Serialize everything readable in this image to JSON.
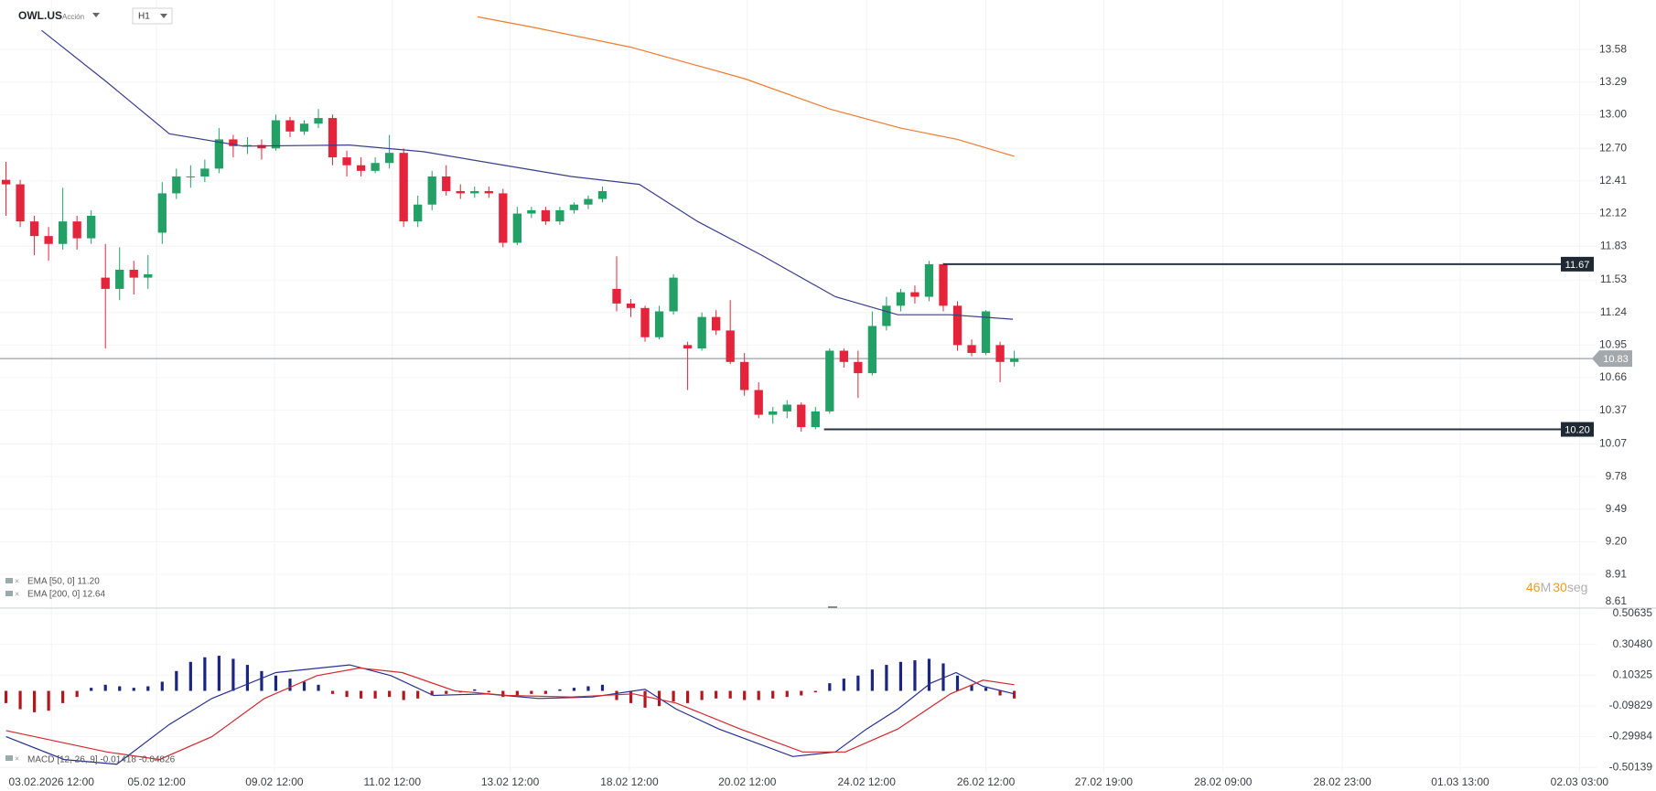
{
  "header": {
    "symbol": "OWL.US",
    "instrument_type": "Acción",
    "timeframe": "H1"
  },
  "timer": {
    "minutes": "46",
    "minutes_unit": "M",
    "seconds": "30",
    "seconds_unit": "seg"
  },
  "chart_data": [
    {
      "type": "candlestick",
      "up_color": "#23a065",
      "down_color": "#e3243b",
      "open": [
        12.42,
        12.38,
        12.05,
        11.92,
        11.85,
        12.05,
        11.9,
        11.55,
        11.45,
        11.62,
        11.55,
        11.95,
        12.3,
        12.45,
        12.45,
        12.52,
        12.78,
        12.72,
        12.73,
        12.7,
        12.95,
        12.85,
        12.92,
        12.97,
        12.62,
        12.55,
        12.5,
        12.57,
        12.66,
        12.05,
        12.2,
        12.45,
        12.32,
        12.3,
        12.32,
        12.3,
        11.86,
        12.12,
        12.15,
        12.05,
        12.15,
        12.2,
        12.25,
        11.45,
        11.32,
        11.28,
        11.02,
        11.25,
        10.95,
        10.92,
        11.2,
        11.08,
        10.8,
        10.55,
        10.33,
        10.36,
        10.42,
        10.22,
        10.36,
        10.9,
        10.8,
        10.7,
        11.12,
        11.3,
        11.42,
        11.38,
        11.67,
        11.3,
        10.95,
        10.88,
        10.95,
        10.8
      ],
      "high": [
        12.58,
        12.42,
        12.1,
        12.0,
        12.35,
        12.1,
        12.15,
        11.85,
        11.82,
        11.7,
        11.75,
        12.4,
        12.52,
        12.55,
        12.6,
        12.88,
        12.82,
        12.8,
        12.78,
        13.0,
        12.98,
        12.95,
        13.05,
        13.0,
        12.68,
        12.62,
        12.62,
        12.82,
        12.7,
        12.28,
        12.5,
        12.55,
        12.38,
        12.36,
        12.36,
        12.34,
        12.18,
        12.18,
        12.18,
        12.18,
        12.22,
        12.28,
        12.36,
        11.74,
        11.36,
        11.3,
        11.3,
        11.58,
        10.98,
        11.24,
        11.26,
        11.35,
        10.88,
        10.62,
        10.4,
        10.46,
        10.44,
        10.4,
        10.92,
        10.92,
        10.9,
        11.25,
        11.38,
        11.45,
        11.48,
        11.7,
        11.68,
        11.34,
        11.0,
        11.26,
        10.98,
        10.9
      ],
      "low": [
        12.1,
        12.0,
        11.75,
        11.7,
        11.8,
        11.8,
        11.85,
        10.92,
        11.35,
        11.4,
        11.45,
        11.85,
        12.25,
        12.35,
        12.4,
        12.48,
        12.62,
        12.65,
        12.6,
        12.68,
        12.8,
        12.82,
        12.88,
        12.55,
        12.45,
        12.45,
        12.48,
        12.52,
        12.0,
        12.0,
        12.15,
        12.28,
        12.25,
        12.26,
        12.26,
        11.82,
        11.84,
        12.08,
        12.02,
        12.02,
        12.12,
        12.16,
        12.22,
        11.25,
        11.2,
        10.98,
        11.0,
        11.22,
        10.55,
        10.9,
        11.04,
        10.78,
        10.5,
        10.3,
        10.25,
        10.3,
        10.18,
        10.2,
        10.34,
        10.75,
        10.48,
        10.68,
        11.08,
        11.25,
        11.32,
        11.34,
        11.25,
        10.9,
        10.85,
        10.86,
        10.62,
        10.76
      ],
      "close": [
        12.38,
        12.05,
        11.92,
        11.85,
        12.05,
        11.9,
        12.1,
        11.45,
        11.62,
        11.55,
        11.58,
        12.3,
        12.45,
        12.45,
        12.52,
        12.78,
        12.72,
        12.73,
        12.7,
        12.95,
        12.85,
        12.92,
        12.97,
        12.62,
        12.55,
        12.5,
        12.57,
        12.66,
        12.05,
        12.2,
        12.45,
        12.32,
        12.3,
        12.32,
        12.3,
        11.86,
        12.12,
        12.15,
        12.05,
        12.15,
        12.2,
        12.25,
        12.32,
        11.32,
        11.28,
        11.02,
        11.25,
        11.55,
        10.92,
        11.2,
        11.08,
        10.8,
        10.55,
        10.33,
        10.36,
        10.42,
        10.22,
        10.36,
        10.9,
        10.8,
        10.7,
        11.12,
        11.3,
        11.42,
        11.38,
        11.67,
        11.3,
        10.95,
        10.88,
        11.25,
        10.8,
        10.83
      ],
      "xlim": [
        -0.1,
        112
      ],
      "xticks": [
        {
          "value": 3.2,
          "label": "03.02.2026  12:00"
        },
        {
          "value": 10.6,
          "label": "05.02  12:00"
        },
        {
          "value": 18.9,
          "label": "09.02  12:00"
        },
        {
          "value": 27.2,
          "label": "11.02  12:00"
        },
        {
          "value": 35.5,
          "label": "13.02  12:00"
        },
        {
          "value": 43.9,
          "label": "18.02  12:00"
        },
        {
          "value": 52.2,
          "label": "20.02  12:00"
        },
        {
          "value": 60.6,
          "label": "24.02  12:00"
        },
        {
          "value": 69,
          "label": "26.02  12:00"
        },
        {
          "value": 77.3,
          "label": "27.02  19:00"
        },
        {
          "value": 85.7,
          "label": "28.02  09:00"
        },
        {
          "value": 94.1,
          "label": "28.02  23:00"
        },
        {
          "value": 102.4,
          "label": "01.03  13:00"
        },
        {
          "value": 110.8,
          "label": "02.03  03:00"
        }
      ],
      "ylim": [
        8.61,
        14.02
      ],
      "yticks": [
        13.58,
        13.29,
        {
          "value": 13,
          "label": "13.00"
        },
        {
          "value": 12.7,
          "label": "12.70"
        },
        12.41,
        12.12,
        11.83,
        11.53,
        11.24,
        10.95,
        10.66,
        10.37,
        10.07,
        9.78,
        9.49,
        {
          "value": 9.2,
          "label": "9.20"
        },
        8.91,
        8.61
      ],
      "overlays": [
        {
          "name": "EMA [50, 0] 11.20",
          "color": "#3a3d8c",
          "x": [
            2.5,
            7,
            11.5,
            16.7,
            24.2,
            29.4,
            34.6,
            39.8,
            44.6,
            48.7,
            53.2,
            58.4,
            62.8,
            66.5,
            70.9
          ],
          "values": [
            13.75,
            13.3,
            12.83,
            12.72,
            12.73,
            12.67,
            12.56,
            12.45,
            12.38,
            12.05,
            11.75,
            11.38,
            11.22,
            11.22,
            11.18
          ]
        },
        {
          "name": "EMA [200, 0] 12.64",
          "color": "#f07a2e",
          "x": [
            33.2,
            37,
            44,
            52,
            58,
            63,
            67,
            71
          ],
          "values": [
            13.87,
            13.78,
            13.6,
            13.32,
            13.05,
            12.88,
            12.78,
            12.63
          ]
        }
      ],
      "levels": [
        {
          "value": 11.67,
          "label": "11.67",
          "x": 66
        },
        {
          "value": 10.2,
          "label": "10.20",
          "x": 57.6
        }
      ],
      "last_price": {
        "value": 10.83,
        "label": "10.83"
      }
    },
    {
      "type": "macd",
      "legend": "MACD [12, 26, 9] -0.01418 -0.04826",
      "positive_color": "#1c2580",
      "negative_color": "#b3171d",
      "histogram": [
        -0.08,
        -0.12,
        -0.14,
        -0.13,
        -0.08,
        -0.04,
        0.02,
        0.04,
        0.03,
        0.02,
        0.03,
        0.06,
        0.13,
        0.19,
        0.22,
        0.23,
        0.21,
        0.17,
        0.13,
        0.1,
        0.08,
        0.06,
        0.04,
        -0.02,
        -0.04,
        -0.05,
        -0.05,
        -0.04,
        -0.06,
        -0.05,
        -0.03,
        -0.02,
        -0.01,
        0.01,
        -0.01,
        -0.04,
        -0.03,
        -0.02,
        -0.02,
        0.01,
        0.02,
        0.03,
        0.04,
        -0.06,
        -0.08,
        -0.11,
        -0.1,
        -0.07,
        -0.08,
        -0.06,
        -0.05,
        -0.05,
        -0.06,
        -0.06,
        -0.05,
        -0.04,
        -0.03,
        -0.01,
        0.05,
        0.08,
        0.1,
        0.14,
        0.17,
        0.19,
        0.2,
        0.21,
        0.18,
        0.1,
        0.04,
        0.02,
        -0.03,
        -0.05
      ],
      "series": [
        {
          "color": "#27308f",
          "x": [
            0,
            4.1,
            7.8,
            11.5,
            14.5,
            19,
            24.2,
            27.1,
            30.1,
            33.8,
            37.5,
            41.3,
            45,
            47.2,
            50.2,
            55.4,
            58.4,
            60.6,
            62.8,
            65.1,
            66.9,
            68.8,
            71
          ],
          "values": [
            -0.3,
            -0.45,
            -0.48,
            -0.22,
            -0.05,
            0.12,
            0.17,
            0.1,
            -0.03,
            -0.02,
            -0.05,
            -0.04,
            0.01,
            -0.12,
            -0.25,
            -0.43,
            -0.4,
            -0.25,
            -0.12,
            0.05,
            0.12,
            0.03,
            -0.02
          ]
        },
        {
          "color": "#d3282e",
          "x": [
            0,
            7.1,
            10.8,
            14.5,
            18.2,
            21.9,
            24.9,
            27.9,
            31.6,
            35.3,
            39.8,
            44.2,
            47.2,
            51.7,
            56.1,
            59.1,
            62.8,
            66.5,
            68.8,
            71
          ],
          "values": [
            -0.26,
            -0.4,
            -0.45,
            -0.3,
            -0.05,
            0.1,
            0.15,
            0.12,
            0.0,
            -0.03,
            -0.04,
            -0.02,
            -0.08,
            -0.25,
            -0.4,
            -0.4,
            -0.25,
            -0.02,
            0.07,
            0.04
          ]
        }
      ],
      "ylim": [
        -0.53,
        0.53
      ],
      "yticks": [
        0.50635,
        {
          "value": 0.3048,
          "label": "0.30480"
        },
        0.10325,
        -0.09829,
        -0.29984,
        -0.50139
      ]
    }
  ]
}
